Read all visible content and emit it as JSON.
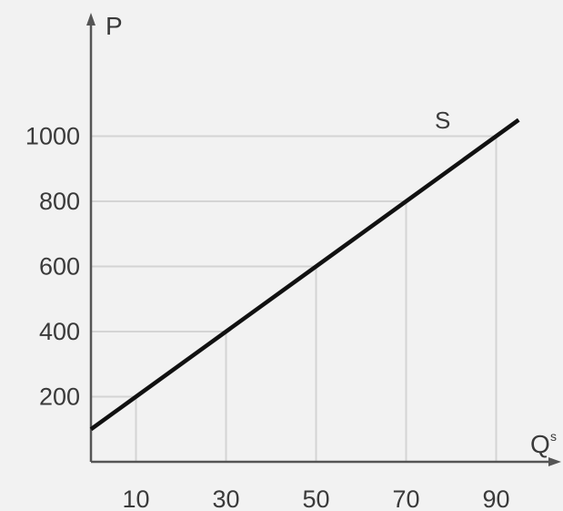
{
  "chart_data": {
    "type": "line",
    "y_axis_label": "P",
    "x_axis_label": "Q",
    "x_axis_label_superscript": "s",
    "curve_label": "S",
    "x_ticks": [
      10,
      30,
      50,
      70,
      90
    ],
    "y_ticks": [
      200,
      400,
      600,
      800,
      1000
    ],
    "x_range": [
      0,
      100
    ],
    "y_range": [
      0,
      1180
    ],
    "series": [
      {
        "name": "S",
        "x": [
          0,
          10,
          30,
          50,
          70,
          90,
          95
        ],
        "y": [
          100,
          200,
          400,
          600,
          800,
          1000,
          1050
        ]
      }
    ],
    "guide_points": [
      {
        "x": 10,
        "y": 200
      },
      {
        "x": 30,
        "y": 400
      },
      {
        "x": 50,
        "y": 600
      },
      {
        "x": 70,
        "y": 800
      },
      {
        "x": 90,
        "y": 1000
      }
    ],
    "grid": false,
    "colors": {
      "line": "#111111",
      "axis": "#555555",
      "guide": "#d4d4d4",
      "text": "#3a3a3a",
      "background": "#f2f2f2"
    }
  }
}
